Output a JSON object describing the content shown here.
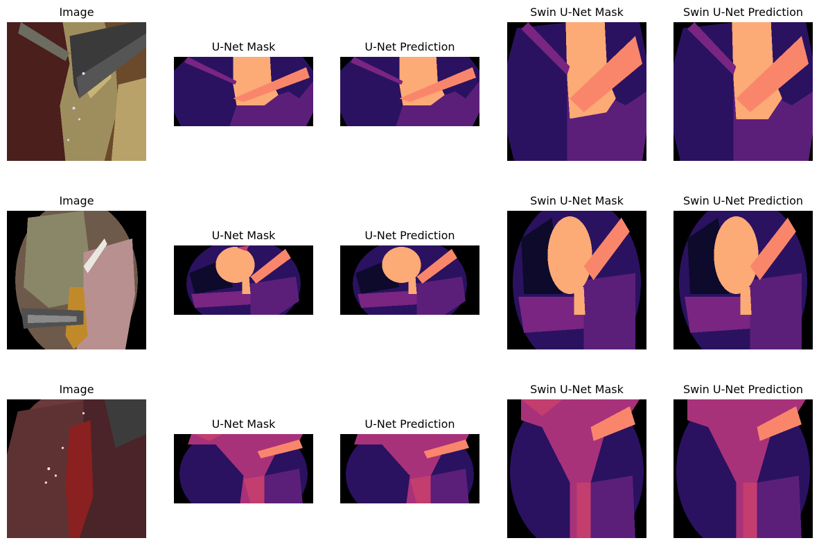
{
  "colors": {
    "background": "#000000",
    "class_dark_navy": "#0d0a2b",
    "class_indigo": "#2a1260",
    "class_purple": "#5b1f7a",
    "class_magenta": "#7a2582",
    "class_pink_red": "#c33d6e",
    "class_rose": "#a8327a",
    "class_salmon": "#f9866b",
    "class_peach": "#fcaa76"
  },
  "rows": [
    {
      "panels": [
        {
          "title": "Image",
          "kind": "photo",
          "scene": "photo-liver-grasper"
        },
        {
          "title": "U-Net Mask",
          "kind": "mask",
          "scene": "row1-seg"
        },
        {
          "title": "U-Net Prediction",
          "kind": "mask",
          "scene": "row1-seg"
        },
        {
          "title": "Swin U-Net Mask",
          "kind": "mask",
          "scene": "row1-seg-tall"
        },
        {
          "title": "Swin U-Net Prediction",
          "kind": "mask",
          "scene": "row1-seg-tall"
        }
      ]
    },
    {
      "panels": [
        {
          "title": "Image",
          "kind": "photo",
          "scene": "photo-gallbladder"
        },
        {
          "title": "U-Net Mask",
          "kind": "mask",
          "scene": "row2-seg"
        },
        {
          "title": "U-Net Prediction",
          "kind": "mask",
          "scene": "row2-seg"
        },
        {
          "title": "Swin U-Net Mask",
          "kind": "mask",
          "scene": "row2-seg-tall"
        },
        {
          "title": "Swin U-Net Prediction",
          "kind": "mask",
          "scene": "row2-seg-tall"
        }
      ]
    },
    {
      "panels": [
        {
          "title": "Image",
          "kind": "photo",
          "scene": "photo-bloody-tissue"
        },
        {
          "title": "U-Net Mask",
          "kind": "mask",
          "scene": "row3-seg"
        },
        {
          "title": "U-Net Prediction",
          "kind": "mask",
          "scene": "row3-seg"
        },
        {
          "title": "Swin U-Net Mask",
          "kind": "mask",
          "scene": "row3-seg-tall"
        },
        {
          "title": "Swin U-Net Prediction",
          "kind": "mask",
          "scene": "row3-seg-tall"
        }
      ]
    }
  ]
}
